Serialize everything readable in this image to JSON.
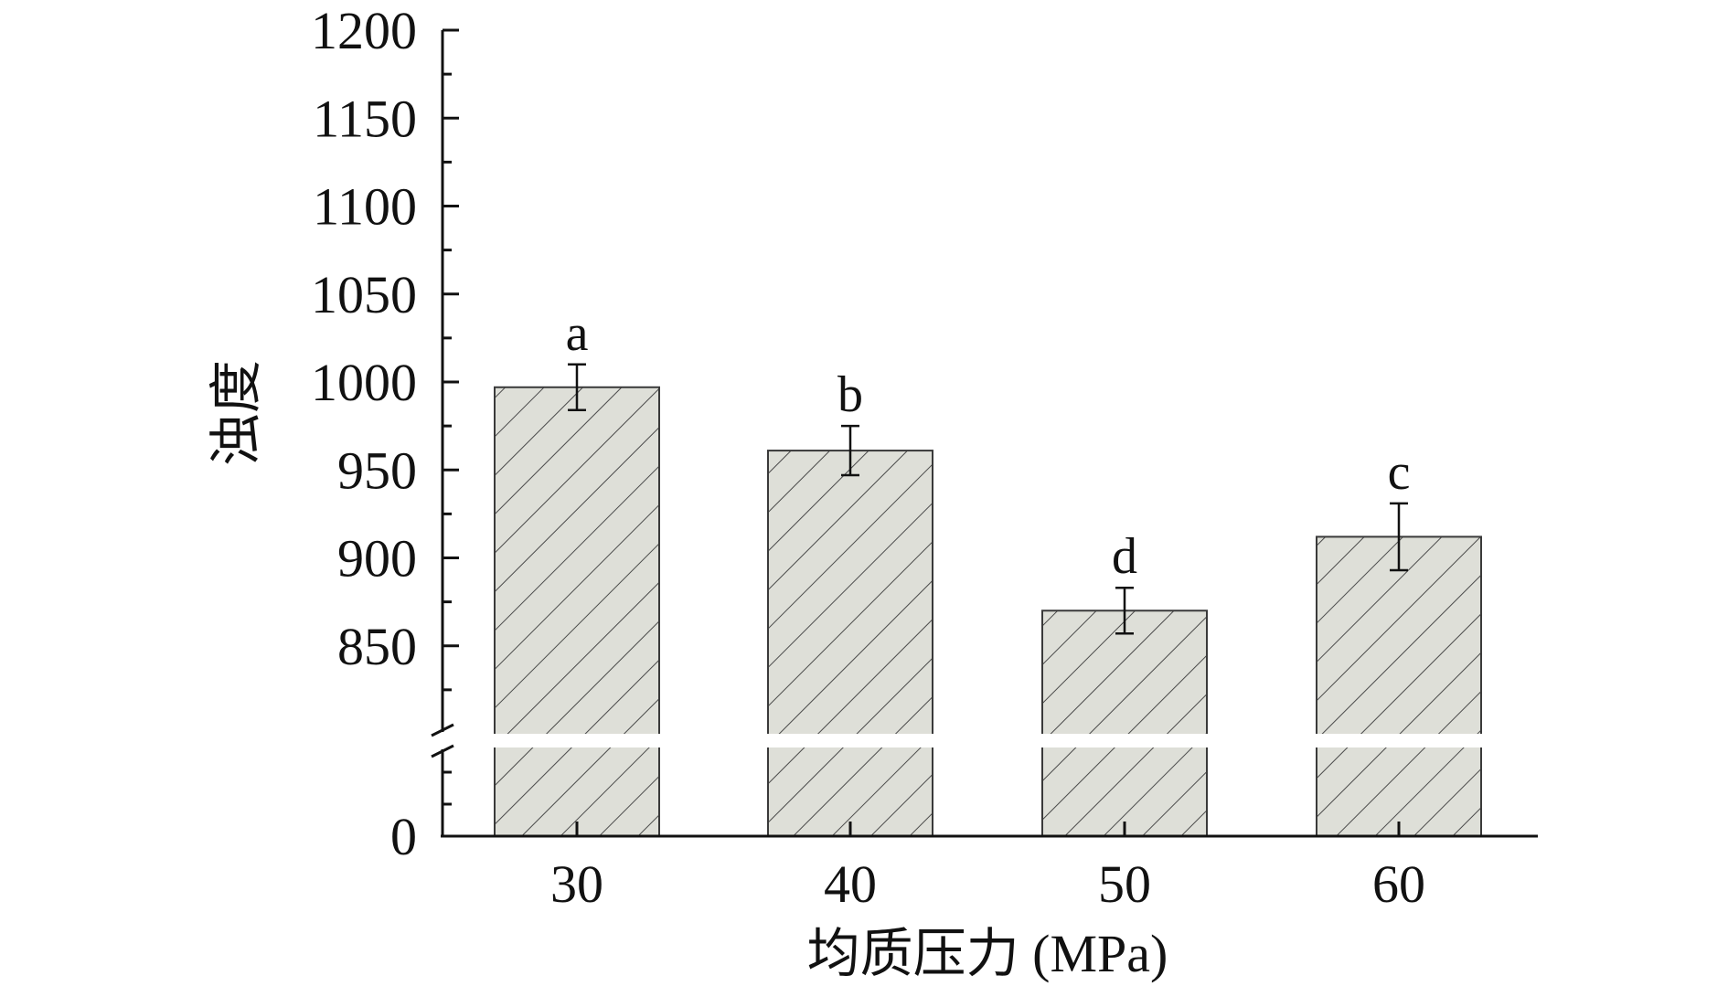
{
  "chart_data": {
    "type": "bar",
    "title": "",
    "xlabel": "均质压力 (MPa)",
    "ylabel": "浊度",
    "categories": [
      "30",
      "40",
      "50",
      "60"
    ],
    "series": [
      {
        "values": [
          997,
          961,
          870,
          912
        ],
        "errors": [
          13,
          14,
          13,
          19
        ],
        "labels": [
          "a",
          "b",
          "d",
          "c"
        ]
      }
    ],
    "y_axis_break": {
      "lower": [
        0,
        0
      ],
      "upper": [
        800,
        1200
      ]
    },
    "yticks": [
      "0",
      "850",
      "900",
      "950",
      "1000",
      "1050",
      "1100",
      "1150",
      "1200"
    ],
    "ylim": [
      800,
      1200
    ],
    "grid": false,
    "legend": "none",
    "bar_pattern": "diagonal-hatch",
    "colors": {
      "bar_fill": "#dedfd8",
      "bar_stroke": "#3a3a3a",
      "hatch": "#4a4a4a",
      "axis": "#111111"
    }
  }
}
